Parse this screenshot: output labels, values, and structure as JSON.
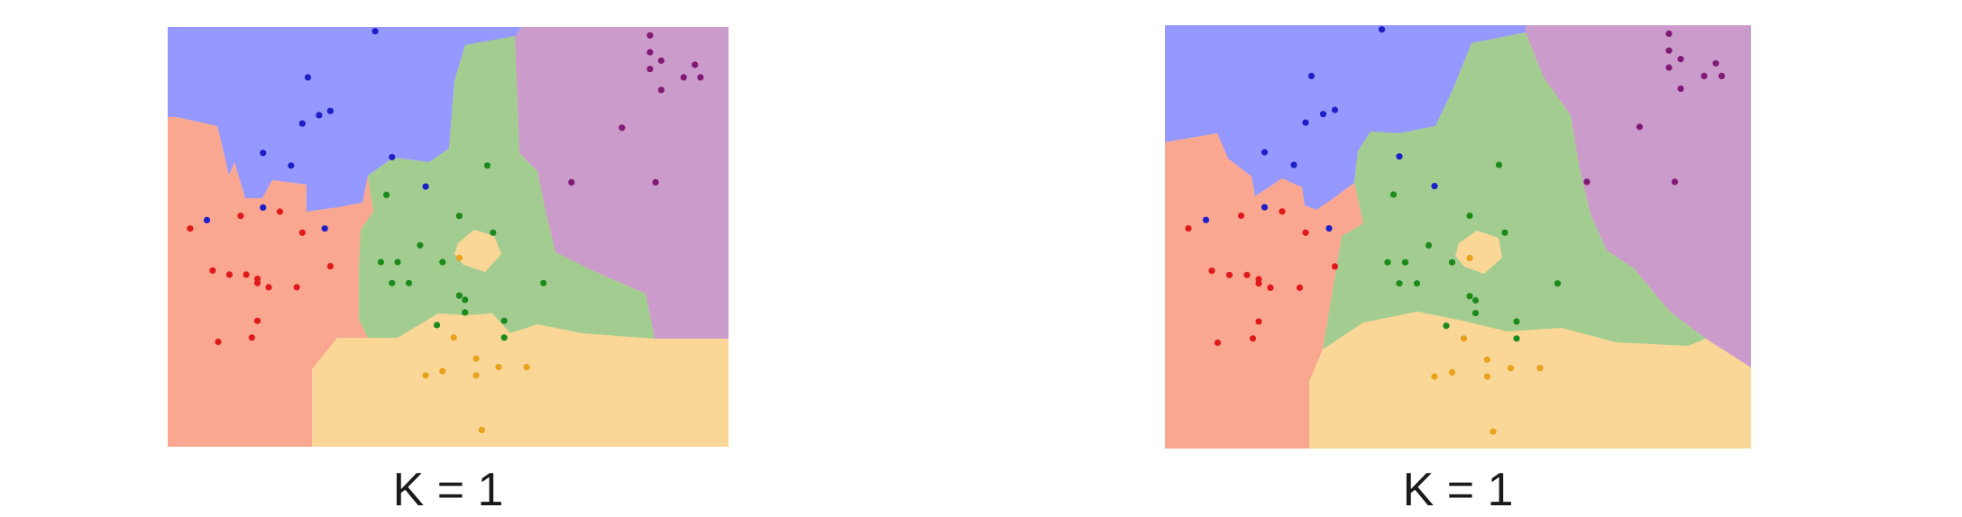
{
  "colors": {
    "class_blue": "#9598ff",
    "class_purple": "#cb9bcb",
    "class_green": "#a3cd90",
    "class_red": "#faa792",
    "class_orange": "#fad797",
    "point_blue": "#1f1fc8",
    "point_purple": "#801a75",
    "point_green": "#1d8a1d",
    "point_red": "#e01a1a",
    "point_orange": "#e8a21d"
  },
  "panels": [
    {
      "caption": "K = 1",
      "boundary": "jagged",
      "points": {
        "blue": [
          [
            0.37,
            0.01
          ],
          [
            0.25,
            0.12
          ],
          [
            0.29,
            0.2
          ],
          [
            0.24,
            0.23
          ],
          [
            0.27,
            0.21
          ],
          [
            0.17,
            0.3
          ],
          [
            0.22,
            0.33
          ],
          [
            0.4,
            0.31
          ],
          [
            0.46,
            0.38
          ],
          [
            0.17,
            0.43
          ],
          [
            0.07,
            0.46
          ],
          [
            0.28,
            0.48
          ]
        ],
        "purple": [
          [
            0.86,
            0.02
          ],
          [
            0.86,
            0.06
          ],
          [
            0.88,
            0.08
          ],
          [
            0.94,
            0.09
          ],
          [
            0.86,
            0.1
          ],
          [
            0.92,
            0.12
          ],
          [
            0.95,
            0.12
          ],
          [
            0.88,
            0.15
          ],
          [
            0.81,
            0.24
          ],
          [
            0.72,
            0.37
          ],
          [
            0.87,
            0.37
          ]
        ],
        "green": [
          [
            0.57,
            0.33
          ],
          [
            0.39,
            0.4
          ],
          [
            0.52,
            0.45
          ],
          [
            0.58,
            0.49
          ],
          [
            0.45,
            0.52
          ],
          [
            0.41,
            0.56
          ],
          [
            0.38,
            0.56
          ],
          [
            0.49,
            0.56
          ],
          [
            0.4,
            0.61
          ],
          [
            0.43,
            0.61
          ],
          [
            0.52,
            0.64
          ],
          [
            0.67,
            0.61
          ],
          [
            0.53,
            0.65
          ],
          [
            0.53,
            0.68
          ],
          [
            0.48,
            0.71
          ],
          [
            0.6,
            0.7
          ],
          [
            0.6,
            0.74
          ]
        ],
        "red": [
          [
            0.04,
            0.48
          ],
          [
            0.13,
            0.45
          ],
          [
            0.2,
            0.44
          ],
          [
            0.24,
            0.49
          ],
          [
            0.08,
            0.58
          ],
          [
            0.11,
            0.59
          ],
          [
            0.14,
            0.59
          ],
          [
            0.16,
            0.6
          ],
          [
            0.16,
            0.61
          ],
          [
            0.18,
            0.62
          ],
          [
            0.23,
            0.62
          ],
          [
            0.29,
            0.57
          ],
          [
            0.16,
            0.7
          ],
          [
            0.15,
            0.74
          ],
          [
            0.09,
            0.75
          ]
        ],
        "orange": [
          [
            0.52,
            0.55
          ],
          [
            0.51,
            0.74
          ],
          [
            0.55,
            0.79
          ],
          [
            0.49,
            0.82
          ],
          [
            0.55,
            0.83
          ],
          [
            0.59,
            0.81
          ],
          [
            0.64,
            0.81
          ],
          [
            0.46,
            0.83
          ],
          [
            0.56,
            0.96
          ]
        ]
      }
    },
    {
      "caption": "K = 1",
      "boundary": "smooth",
      "points": {
        "blue": [
          [
            0.37,
            0.01
          ],
          [
            0.25,
            0.12
          ],
          [
            0.29,
            0.2
          ],
          [
            0.24,
            0.23
          ],
          [
            0.27,
            0.21
          ],
          [
            0.17,
            0.3
          ],
          [
            0.22,
            0.33
          ],
          [
            0.4,
            0.31
          ],
          [
            0.46,
            0.38
          ],
          [
            0.17,
            0.43
          ],
          [
            0.07,
            0.46
          ],
          [
            0.28,
            0.48
          ]
        ],
        "purple": [
          [
            0.86,
            0.02
          ],
          [
            0.86,
            0.06
          ],
          [
            0.88,
            0.08
          ],
          [
            0.94,
            0.09
          ],
          [
            0.86,
            0.1
          ],
          [
            0.92,
            0.12
          ],
          [
            0.95,
            0.12
          ],
          [
            0.88,
            0.15
          ],
          [
            0.81,
            0.24
          ],
          [
            0.72,
            0.37
          ],
          [
            0.87,
            0.37
          ]
        ],
        "green": [
          [
            0.57,
            0.33
          ],
          [
            0.39,
            0.4
          ],
          [
            0.52,
            0.45
          ],
          [
            0.58,
            0.49
          ],
          [
            0.45,
            0.52
          ],
          [
            0.41,
            0.56
          ],
          [
            0.38,
            0.56
          ],
          [
            0.49,
            0.56
          ],
          [
            0.4,
            0.61
          ],
          [
            0.43,
            0.61
          ],
          [
            0.52,
            0.64
          ],
          [
            0.67,
            0.61
          ],
          [
            0.53,
            0.65
          ],
          [
            0.53,
            0.68
          ],
          [
            0.48,
            0.71
          ],
          [
            0.6,
            0.7
          ],
          [
            0.6,
            0.74
          ]
        ],
        "red": [
          [
            0.04,
            0.48
          ],
          [
            0.13,
            0.45
          ],
          [
            0.2,
            0.44
          ],
          [
            0.24,
            0.49
          ],
          [
            0.08,
            0.58
          ],
          [
            0.11,
            0.59
          ],
          [
            0.14,
            0.59
          ],
          [
            0.16,
            0.6
          ],
          [
            0.16,
            0.61
          ],
          [
            0.18,
            0.62
          ],
          [
            0.23,
            0.62
          ],
          [
            0.29,
            0.57
          ],
          [
            0.16,
            0.7
          ],
          [
            0.15,
            0.74
          ],
          [
            0.09,
            0.75
          ]
        ],
        "orange": [
          [
            0.52,
            0.55
          ],
          [
            0.51,
            0.74
          ],
          [
            0.55,
            0.79
          ],
          [
            0.49,
            0.82
          ],
          [
            0.55,
            0.83
          ],
          [
            0.59,
            0.81
          ],
          [
            0.64,
            0.81
          ],
          [
            0.46,
            0.83
          ],
          [
            0.56,
            0.96
          ]
        ]
      }
    }
  ]
}
